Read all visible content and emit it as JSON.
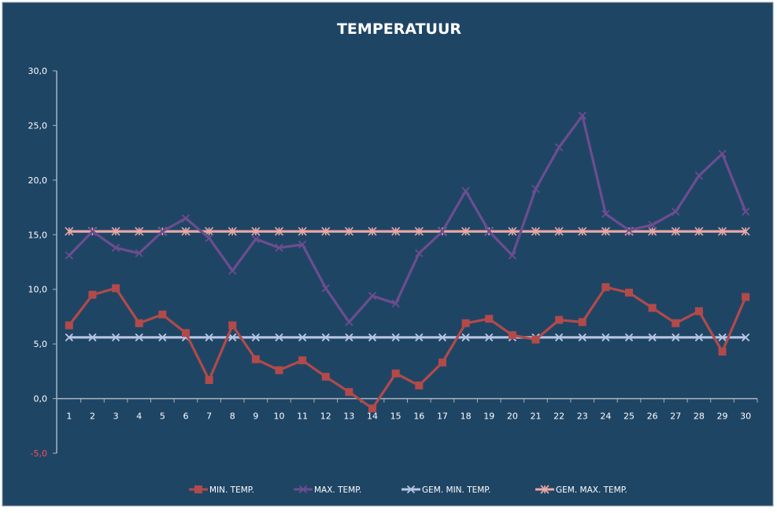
{
  "colors": {
    "background": "#1f4565",
    "axis": "#a9b4c0",
    "text": "#ffffff",
    "negative_tick": "#ff5050",
    "min_temp": "#b24a4a",
    "max_temp": "#6c4d8f",
    "avg_min": "#b7c6e4",
    "avg_max": "#e8a8a6"
  },
  "chart_data": {
    "type": "line",
    "title": "TEMPERATUUR",
    "xlabel": "",
    "ylabel": "",
    "ylim": [
      -5,
      30
    ],
    "y_ticks": [
      "30,0",
      "25,0",
      "20,0",
      "15,0",
      "10,0",
      "5,0",
      "0,0",
      "-5,0"
    ],
    "y_tick_values": [
      30,
      25,
      20,
      15,
      10,
      5,
      0,
      -5
    ],
    "grid": false,
    "legend_position": "bottom",
    "categories": [
      "1",
      "2",
      "3",
      "4",
      "5",
      "6",
      "7",
      "8",
      "9",
      "10",
      "11",
      "12",
      "13",
      "14",
      "15",
      "16",
      "17",
      "18",
      "19",
      "20",
      "21",
      "22",
      "23",
      "24",
      "25",
      "26",
      "27",
      "28",
      "29",
      "30"
    ],
    "series": [
      {
        "name": "MIN. TEMP.",
        "color": "#b24a4a",
        "marker": "square",
        "values": [
          6.7,
          9.5,
          10.1,
          6.9,
          7.7,
          6.0,
          1.7,
          6.7,
          3.6,
          2.6,
          3.5,
          2.0,
          0.6,
          -0.9,
          2.3,
          1.2,
          3.3,
          6.9,
          7.3,
          5.8,
          5.4,
          7.2,
          7.0,
          10.2,
          9.7,
          8.3,
          6.9,
          8.0,
          4.3,
          9.3
        ]
      },
      {
        "name": "MAX. TEMP.",
        "color": "#6c4d8f",
        "marker": "x",
        "values": [
          13.1,
          15.3,
          13.8,
          13.3,
          15.3,
          16.5,
          14.7,
          11.7,
          14.6,
          13.8,
          14.1,
          10.1,
          7.0,
          9.4,
          8.7,
          13.3,
          15.3,
          19.0,
          15.3,
          13.1,
          19.2,
          23.0,
          25.9,
          16.9,
          15.4,
          15.9,
          17.1,
          20.4,
          22.4,
          17.1
        ]
      },
      {
        "name": "GEM. MIN. TEMP.",
        "color": "#b7c6e4",
        "marker": "x",
        "values": [
          5.6,
          5.6,
          5.6,
          5.6,
          5.6,
          5.6,
          5.6,
          5.6,
          5.6,
          5.6,
          5.6,
          5.6,
          5.6,
          5.6,
          5.6,
          5.6,
          5.6,
          5.6,
          5.6,
          5.6,
          5.6,
          5.6,
          5.6,
          5.6,
          5.6,
          5.6,
          5.6,
          5.6,
          5.6,
          5.6
        ]
      },
      {
        "name": "GEM. MAX. TEMP.",
        "color": "#e8a8a6",
        "marker": "star",
        "values": [
          15.3,
          15.3,
          15.3,
          15.3,
          15.3,
          15.3,
          15.3,
          15.3,
          15.3,
          15.3,
          15.3,
          15.3,
          15.3,
          15.3,
          15.3,
          15.3,
          15.3,
          15.3,
          15.3,
          15.3,
          15.3,
          15.3,
          15.3,
          15.3,
          15.3,
          15.3,
          15.3,
          15.3,
          15.3,
          15.3
        ]
      }
    ]
  }
}
